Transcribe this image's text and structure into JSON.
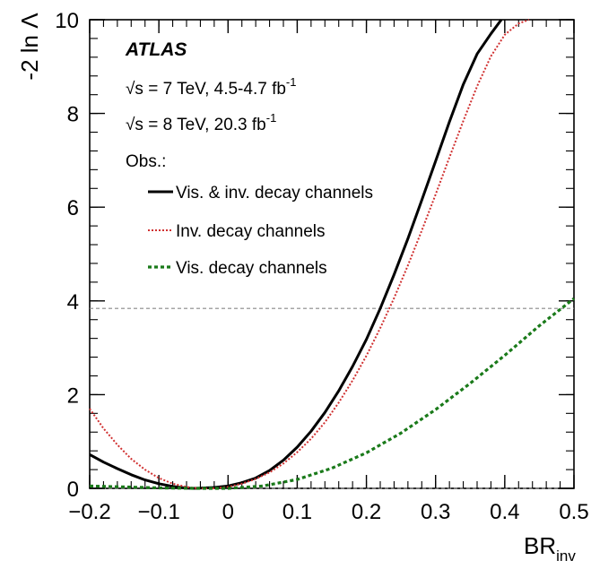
{
  "chart_data": {
    "type": "line",
    "xlabel": "BR",
    "xlabel_sub": "inv",
    "ylabel": "-2 ln Λ",
    "xlim": [
      -0.2,
      0.5
    ],
    "ylim": [
      0,
      10
    ],
    "x_ticks": [
      -0.2,
      -0.1,
      0,
      0.1,
      0.2,
      0.3,
      0.4,
      0.5
    ],
    "x_tick_labels": [
      "−0.2",
      "−0.1",
      "0",
      "0.1",
      "0.2",
      "0.3",
      "0.4",
      "0.5"
    ],
    "y_ticks": [
      0,
      2,
      4,
      6,
      8,
      10
    ],
    "y_tick_labels": [
      "0",
      "2",
      "4",
      "6",
      "8",
      "10"
    ],
    "reference_lines": [
      3.84,
      0
    ],
    "annotations": {
      "experiment": "ATLAS",
      "line1_prefix": "√s = 7 TeV, 4.5-4.7 fb",
      "line1_sup": "-1",
      "line2_prefix": "√s = 8 TeV, 20.3 fb",
      "line2_sup": "-1",
      "obs": "Obs.:"
    },
    "legend_position": "top-left",
    "series": [
      {
        "name": "Vis. & inv. decay channels",
        "color": "#000000",
        "style": "solid",
        "x": [
          -0.2,
          -0.18,
          -0.16,
          -0.14,
          -0.12,
          -0.1,
          -0.08,
          -0.06,
          -0.05,
          -0.04,
          -0.02,
          0,
          0.02,
          0.04,
          0.06,
          0.08,
          0.1,
          0.12,
          0.14,
          0.16,
          0.18,
          0.2,
          0.22,
          0.24,
          0.26,
          0.28,
          0.3,
          0.32,
          0.34,
          0.36,
          0.38,
          0.395
        ],
        "y": [
          0.72,
          0.56,
          0.42,
          0.29,
          0.18,
          0.1,
          0.04,
          0.005,
          0,
          0.005,
          0.02,
          0.05,
          0.12,
          0.22,
          0.38,
          0.6,
          0.88,
          1.22,
          1.62,
          2.08,
          2.6,
          3.18,
          3.84,
          4.56,
          5.33,
          6.15,
          6.98,
          7.82,
          8.62,
          9.27,
          9.7,
          10.0
        ]
      },
      {
        "name": "Inv. decay channels",
        "color": "#d03030",
        "style": "dotted",
        "x": [
          -0.2,
          -0.18,
          -0.16,
          -0.14,
          -0.12,
          -0.1,
          -0.08,
          -0.06,
          -0.05,
          -0.04,
          -0.02,
          0,
          0.02,
          0.04,
          0.06,
          0.08,
          0.1,
          0.12,
          0.14,
          0.16,
          0.18,
          0.2,
          0.22,
          0.24,
          0.26,
          0.28,
          0.3,
          0.32,
          0.34,
          0.36,
          0.38,
          0.4,
          0.42,
          0.435
        ],
        "y": [
          1.7,
          1.28,
          0.93,
          0.63,
          0.4,
          0.22,
          0.1,
          0.03,
          0.01,
          0,
          0,
          0.03,
          0.1,
          0.2,
          0.34,
          0.53,
          0.77,
          1.06,
          1.41,
          1.83,
          2.3,
          2.83,
          3.42,
          4.06,
          4.76,
          5.5,
          6.27,
          7.06,
          7.84,
          8.58,
          9.22,
          9.68,
          9.92,
          10.0
        ]
      },
      {
        "name": "Vis. decay channels",
        "color": "#1a7a1a",
        "style": "dashed",
        "x": [
          -0.2,
          -0.15,
          -0.1,
          -0.05,
          0,
          0.05,
          0.1,
          0.15,
          0.2,
          0.25,
          0.3,
          0.35,
          0.4,
          0.45,
          0.5
        ],
        "y": [
          0.05,
          0.03,
          0.01,
          0,
          0,
          0.05,
          0.19,
          0.43,
          0.76,
          1.18,
          1.68,
          2.24,
          2.84,
          3.47,
          4.05
        ]
      }
    ]
  }
}
